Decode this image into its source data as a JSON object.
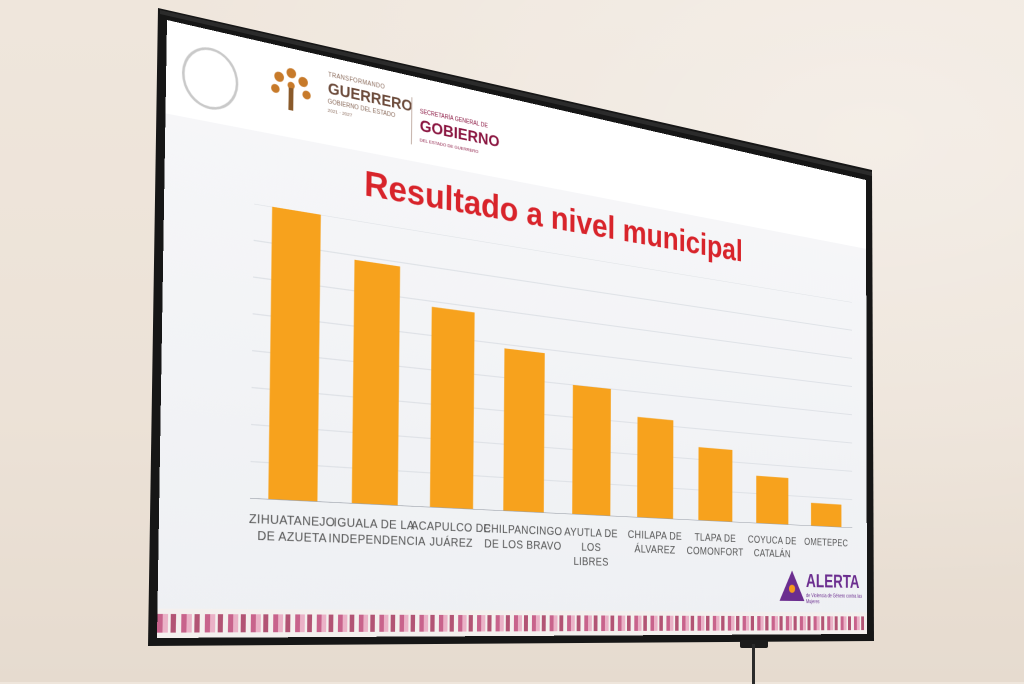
{
  "header": {
    "org_primary_top": "TRANSFORMANDO",
    "org_primary_name": "GUERRERO",
    "org_primary_sub": "GOBIERNO DEL ESTADO",
    "org_primary_years": "2021 · 2027",
    "org_secondary_top": "SECRETARÍA GENERAL DE",
    "org_secondary_name": "GOBIERNO",
    "org_secondary_sub": "DEL ESTADO DE GUERRERO"
  },
  "slide_title": "Resultado a nivel municipal",
  "chart_data": {
    "type": "bar",
    "categories": [
      [
        "ZIHUATANEJO",
        "DE AZUETA"
      ],
      [
        "IGUALA DE LA",
        "INDEPENDENCIA"
      ],
      [
        "ACAPULCO DE",
        "JUÁREZ"
      ],
      [
        "CHILPANCINGO",
        "DE LOS BRAVO"
      ],
      [
        "AYUTLA DE LOS",
        "LIBRES"
      ],
      [
        "CHILAPA DE",
        "ÁLVAREZ"
      ],
      [
        "TLAPA DE",
        "COMONFORT"
      ],
      [
        "COYUCA DE",
        "CATALÁN"
      ],
      [
        "OMETEPEC"
      ]
    ],
    "values": [
      100,
      86,
      73,
      61,
      50,
      40,
      30,
      20,
      10
    ],
    "bar_color": "#f7a21d",
    "grid": true,
    "ylim": [
      0,
      100
    ]
  },
  "alert_badge": {
    "word": "ALERTA",
    "subtext": "de Violencia de Género contra las Mujeres"
  },
  "colors": {
    "title": "#d8242b",
    "guerrero": "#6b4a3a",
    "gobierno": "#8a1540",
    "alert": "#6b2d8f"
  }
}
